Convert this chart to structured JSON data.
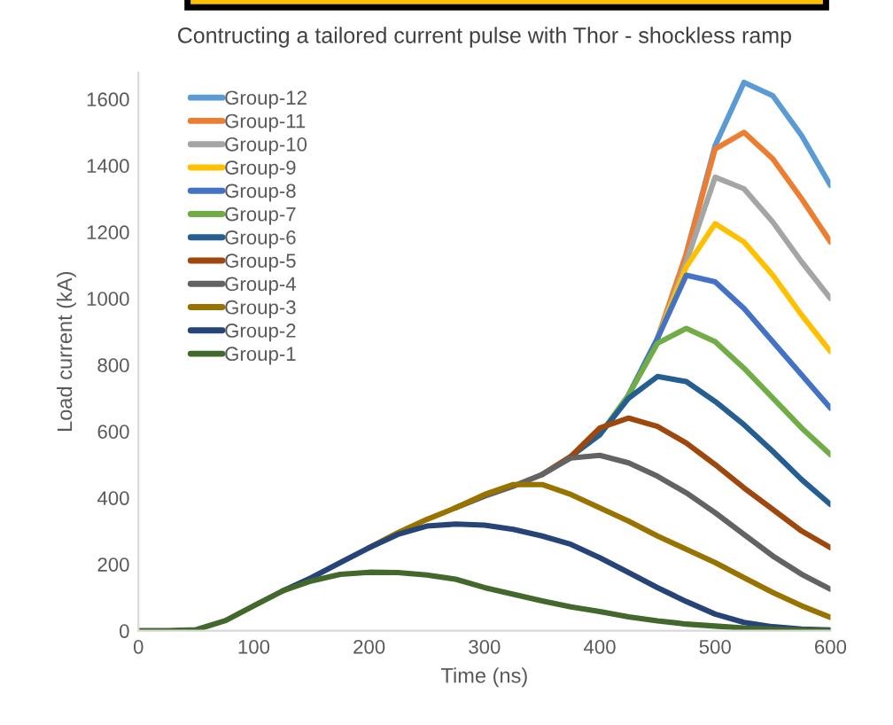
{
  "chart_data": {
    "type": "line",
    "title": "Contructing a tailored current pulse with Thor - shockless ramp",
    "xlabel": "Time (ns)",
    "ylabel": "Load current (kA)",
    "x": [
      0,
      25,
      50,
      75,
      100,
      125,
      150,
      175,
      200,
      225,
      250,
      275,
      300,
      325,
      350,
      375,
      400,
      425,
      450,
      475,
      500,
      525,
      550,
      575,
      600
    ],
    "xlim": [
      0,
      600
    ],
    "xticks": [
      0,
      100,
      200,
      300,
      400,
      500,
      600
    ],
    "ylim": [
      0,
      1680
    ],
    "yticks": [
      0,
      200,
      400,
      600,
      800,
      1000,
      1200,
      1400,
      1600
    ],
    "grid": false,
    "legend": "top left",
    "marker": "none",
    "line_style": "solid",
    "series": [
      {
        "name": "Group-12",
        "color": "#5b9bd5",
        "values": [
          null,
          null,
          null,
          null,
          null,
          null,
          null,
          null,
          null,
          null,
          null,
          null,
          null,
          null,
          null,
          null,
          null,
          null,
          null,
          1135,
          1460,
          1650,
          1610,
          1490,
          1340
        ]
      },
      {
        "name": "Group-11",
        "color": "#ed7d31",
        "values": [
          null,
          null,
          null,
          null,
          null,
          null,
          null,
          null,
          null,
          null,
          null,
          null,
          null,
          null,
          null,
          null,
          null,
          null,
          880,
          1135,
          1450,
          1500,
          1420,
          1300,
          1170
        ]
      },
      {
        "name": "Group-10",
        "color": "#a5a5a5",
        "values": [
          null,
          null,
          null,
          null,
          null,
          null,
          null,
          null,
          null,
          null,
          null,
          null,
          null,
          null,
          null,
          null,
          null,
          null,
          880,
          1110,
          1365,
          1330,
          1230,
          1110,
          1000
        ]
      },
      {
        "name": "Group-9",
        "color": "#ffc000",
        "values": [
          null,
          null,
          null,
          null,
          null,
          null,
          null,
          null,
          null,
          null,
          null,
          null,
          null,
          null,
          null,
          null,
          null,
          null,
          880,
          1095,
          1225,
          1170,
          1070,
          950,
          840
        ]
      },
      {
        "name": "Group-8",
        "color": "#4472c4",
        "values": [
          null,
          null,
          null,
          null,
          null,
          null,
          null,
          null,
          null,
          null,
          null,
          null,
          null,
          null,
          null,
          null,
          null,
          710,
          880,
          1070,
          1050,
          970,
          870,
          770,
          670
        ]
      },
      {
        "name": "Group-7",
        "color": "#70ad47",
        "values": [
          null,
          null,
          null,
          null,
          null,
          null,
          null,
          null,
          null,
          null,
          null,
          null,
          null,
          null,
          null,
          null,
          590,
          710,
          865,
          910,
          870,
          790,
          700,
          610,
          530
        ]
      },
      {
        "name": "Group-6",
        "color": "#255e91",
        "values": [
          null,
          null,
          null,
          null,
          null,
          null,
          null,
          null,
          null,
          null,
          null,
          null,
          null,
          null,
          null,
          525,
          590,
          700,
          765,
          750,
          690,
          620,
          540,
          455,
          380
        ]
      },
      {
        "name": "Group-5",
        "color": "#9e480e",
        "values": [
          null,
          null,
          null,
          null,
          null,
          null,
          null,
          null,
          null,
          null,
          null,
          null,
          null,
          null,
          470,
          525,
          610,
          640,
          615,
          565,
          500,
          430,
          365,
          300,
          250
        ]
      },
      {
        "name": "Group-4",
        "color": "#636363",
        "values": [
          null,
          null,
          null,
          null,
          null,
          null,
          null,
          null,
          null,
          null,
          null,
          370,
          405,
          435,
          470,
          520,
          528,
          505,
          465,
          415,
          355,
          290,
          225,
          170,
          125
        ]
      },
      {
        "name": "Group-3",
        "color": "#997300",
        "values": [
          null,
          null,
          null,
          null,
          null,
          null,
          null,
          null,
          250,
          295,
          335,
          370,
          410,
          440,
          440,
          410,
          370,
          330,
          285,
          245,
          205,
          160,
          115,
          75,
          40
        ]
      },
      {
        "name": "Group-2",
        "color": "#264478",
        "values": [
          null,
          null,
          null,
          null,
          null,
          120,
          160,
          205,
          250,
          290,
          315,
          321,
          318,
          305,
          285,
          260,
          220,
          175,
          130,
          88,
          50,
          25,
          12,
          5,
          2
        ]
      },
      {
        "name": "Group-1",
        "color": "#43682b",
        "values": [
          0,
          0,
          3,
          30,
          75,
          120,
          150,
          170,
          176,
          175,
          168,
          155,
          130,
          110,
          90,
          72,
          58,
          42,
          30,
          20,
          14,
          8,
          4,
          2,
          0
        ]
      }
    ]
  }
}
